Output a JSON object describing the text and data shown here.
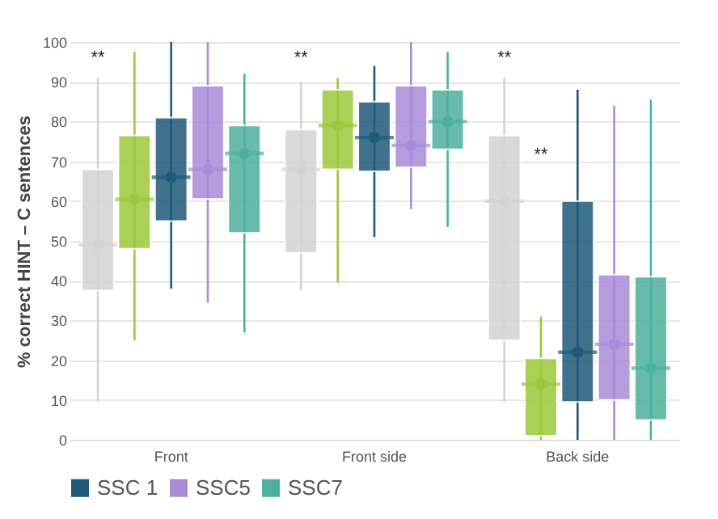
{
  "chart_data": {
    "type": "box",
    "ylabel": "% correct HINT – C sentences",
    "categories": [
      "Front",
      "Front side",
      "Back side"
    ],
    "ylim": [
      0,
      100
    ],
    "yticks": [
      0,
      10,
      20,
      30,
      40,
      50,
      60,
      70,
      80,
      90,
      100
    ],
    "grid": "y",
    "legend": "bottom",
    "annotations": [
      "**",
      "**",
      "**",
      "**"
    ],
    "series": [
      {
        "color": "#d3d3d3",
        "boxes": [
          {
            "low": 9.5,
            "q1": 37.5,
            "median": 49,
            "q3": 68,
            "high": 91,
            "mean": 49
          },
          {
            "low": 37.5,
            "q1": 47,
            "median": 68,
            "q3": 78,
            "high": 90,
            "mean": 68
          },
          {
            "low": 9.5,
            "q1": 25,
            "median": 60,
            "q3": 76.5,
            "high": 91,
            "mean": 60
          }
        ]
      },
      {
        "color": "#9cc83c",
        "boxes": [
          {
            "low": 25,
            "q1": 48,
            "median": 60.5,
            "q3": 76.5,
            "high": 97.5,
            "mean": 60.5
          },
          {
            "low": 39.5,
            "q1": 68,
            "median": 79,
            "q3": 88,
            "high": 91,
            "mean": 79
          },
          {
            "low": 0,
            "q1": 1,
            "median": 14,
            "q3": 20.5,
            "high": 31,
            "mean": 14
          }
        ]
      },
      {
        "name": "SSC 1",
        "color": "#1f5a7a",
        "boxes": [
          {
            "low": 38,
            "q1": 55,
            "median": 66,
            "q3": 81,
            "high": 100,
            "mean": 66
          },
          {
            "low": 51,
            "q1": 67.5,
            "median": 76,
            "q3": 85,
            "high": 94,
            "mean": 76
          },
          {
            "low": 0,
            "q1": 9.5,
            "median": 22,
            "q3": 60,
            "high": 88,
            "mean": 22
          }
        ]
      },
      {
        "name": "SSC5",
        "color": "#a98bd8",
        "boxes": [
          {
            "low": 34.5,
            "q1": 60.5,
            "median": 68,
            "q3": 89,
            "high": 100,
            "mean": 68
          },
          {
            "low": 58,
            "q1": 68.5,
            "median": 74,
            "q3": 89,
            "high": 100,
            "mean": 74
          },
          {
            "low": 0,
            "q1": 10,
            "median": 24,
            "q3": 41.5,
            "high": 84,
            "mean": 24
          }
        ]
      },
      {
        "name": "SSC7",
        "color": "#4cb09c",
        "boxes": [
          {
            "low": 27,
            "q1": 52,
            "median": 72,
            "q3": 79,
            "high": 92,
            "mean": 72
          },
          {
            "low": 53.5,
            "q1": 73,
            "median": 80,
            "q3": 88,
            "high": 97.5,
            "mean": 80
          },
          {
            "low": 0,
            "q1": 5,
            "median": 18,
            "q3": 41,
            "high": 85.5,
            "mean": 18
          }
        ]
      }
    ]
  }
}
